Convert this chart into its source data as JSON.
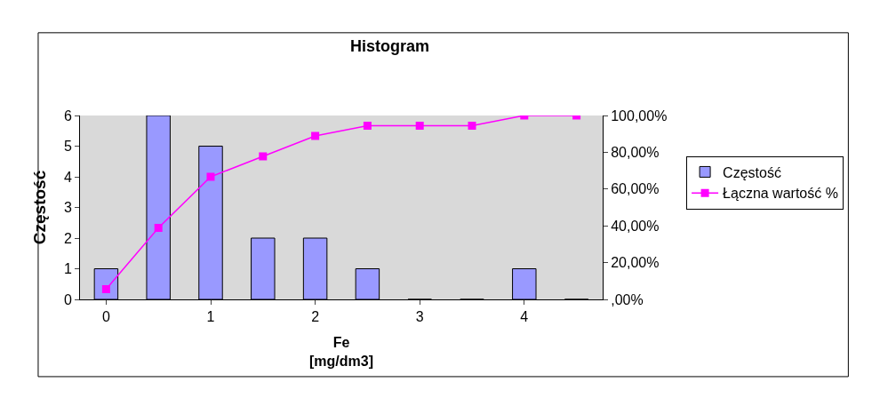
{
  "chart_data": {
    "type": "bar",
    "title": "Histogram",
    "xlabel": "Fe\n[mg/dm3]",
    "ylabel": "Częstość",
    "categories": [
      "0",
      null,
      "1",
      null,
      "2",
      null,
      "3",
      null,
      "4",
      null
    ],
    "series": [
      {
        "name": "Częstość",
        "color": "#9999ff",
        "values": [
          1,
          6,
          5,
          2,
          2,
          1,
          0,
          0,
          1,
          0
        ]
      },
      {
        "name": "Łączna wartość %",
        "type": "line",
        "axis": "y2",
        "color": "#ff00ff",
        "marker": "square",
        "values": [
          5.56,
          38.89,
          66.67,
          77.78,
          88.89,
          94.44,
          94.44,
          94.44,
          100,
          100
        ]
      }
    ],
    "ylim": [
      0,
      6
    ],
    "yticks": [
      0,
      1,
      2,
      3,
      4,
      5,
      6
    ],
    "y2lim": [
      0,
      100
    ],
    "y2ticks": [
      {
        "value": 0,
        "label": ",00%"
      },
      {
        "value": 20,
        "label": "20,00%"
      },
      {
        "value": 40,
        "label": "40,00%"
      },
      {
        "value": 60,
        "label": "60,00%"
      },
      {
        "value": 80,
        "label": "80,00%"
      },
      {
        "value": 100,
        "label": "100,00%"
      }
    ],
    "grid": false,
    "legend": "right"
  }
}
